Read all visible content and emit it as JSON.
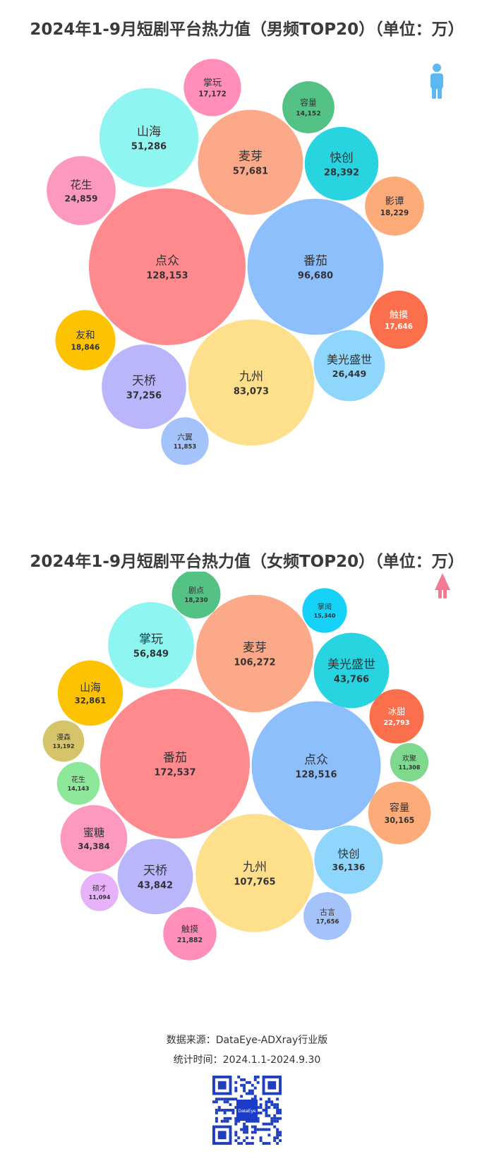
{
  "charts": [
    {
      "title": "2024年1-9月短剧平台热力值（男频TOP20）（单位：万）",
      "icon": "male-person-icon",
      "icon_color": "#5bb8f0"
    },
    {
      "title": "2024年1-9月短剧平台热力值（女频TOP20）（单位：万）",
      "icon": "female-person-icon",
      "icon_color": "#f27b93"
    }
  ],
  "chart_data": [
    {
      "type": "bubble",
      "title": "2024年1-9月短剧平台热力值（男频TOP20）（单位：万）",
      "items": [
        {
          "name": "点众",
          "value": 128153,
          "label": "128,153",
          "color": "#ff8a8e"
        },
        {
          "name": "番茄",
          "value": 96680,
          "label": "96,680",
          "color": "#8cbffb"
        },
        {
          "name": "九州",
          "value": 83073,
          "label": "83,073",
          "color": "#fedf8c"
        },
        {
          "name": "麦芽",
          "value": 57681,
          "label": "57,681",
          "color": "#fba988"
        },
        {
          "name": "山海",
          "value": 51286,
          "label": "51,286",
          "color": "#8ef5f0"
        },
        {
          "name": "天桥",
          "value": 37256,
          "label": "37,256",
          "color": "#bab6fb"
        },
        {
          "name": "快创",
          "value": 28392,
          "label": "28,392",
          "color": "#27d4e0"
        },
        {
          "name": "美光盛世",
          "value": 26449,
          "label": "26,449",
          "color": "#8fd6fc"
        },
        {
          "name": "花生",
          "value": 24859,
          "label": "24,859",
          "color": "#fd99bf"
        },
        {
          "name": "友和",
          "value": 18846,
          "label": "18,846",
          "color": "#fdc300"
        },
        {
          "name": "影谭",
          "value": 18229,
          "label": "18,229",
          "color": "#fdab79"
        },
        {
          "name": "触摸",
          "value": 17646,
          "label": "17,646",
          "color": "#fc6f4c"
        },
        {
          "name": "掌玩",
          "value": 17172,
          "label": "17,172",
          "color": "#ff8fba"
        },
        {
          "name": "容量",
          "value": 14152,
          "label": "14,152",
          "color": "#55c285"
        },
        {
          "name": "六翼",
          "value": 11853,
          "label": "11,853",
          "color": "#a5c3fb"
        }
      ]
    },
    {
      "type": "bubble",
      "title": "2024年1-9月短剧平台热力值（女频TOP20）（单位：万）",
      "items": [
        {
          "name": "番茄",
          "value": 172537,
          "label": "172,537",
          "color": "#ff8a8e"
        },
        {
          "name": "点众",
          "value": 128516,
          "label": "128,516",
          "color": "#8cbffb"
        },
        {
          "name": "九州",
          "value": 107765,
          "label": "107,765",
          "color": "#fedf8c"
        },
        {
          "name": "麦芽",
          "value": 106272,
          "label": "106,272",
          "color": "#fba988"
        },
        {
          "name": "掌玩",
          "value": 56849,
          "label": "56,849",
          "color": "#8ef5f0"
        },
        {
          "name": "天桥",
          "value": 43842,
          "label": "43,842",
          "color": "#bab6fb"
        },
        {
          "name": "美光盛世",
          "value": 43766,
          "label": "43,766",
          "color": "#27d4e0"
        },
        {
          "name": "快创",
          "value": 36136,
          "label": "36,136",
          "color": "#8fd6fc"
        },
        {
          "name": "蜜糖",
          "value": 34384,
          "label": "34,384",
          "color": "#fd99bf"
        },
        {
          "name": "山海",
          "value": 32861,
          "label": "32,861",
          "color": "#fdc300"
        },
        {
          "name": "容量",
          "value": 30165,
          "label": "30,165",
          "color": "#fdab79"
        },
        {
          "name": "冰甜",
          "value": 22793,
          "label": "22,793",
          "color": "#fc6f4c"
        },
        {
          "name": "触摸",
          "value": 21882,
          "label": "21,882",
          "color": "#ff8fba"
        },
        {
          "name": "剧点",
          "value": 18230,
          "label": "18,230",
          "color": "#55c285"
        },
        {
          "name": "古言",
          "value": 17656,
          "label": "17,656",
          "color": "#a5c3fb"
        },
        {
          "name": "掌阅",
          "value": 15340,
          "label": "15,340",
          "color": "#16d2f8"
        },
        {
          "name": "花生",
          "value": 14143,
          "label": "14,143",
          "color": "#8ee89a"
        },
        {
          "name": "漫森",
          "value": 13192,
          "label": "13,192",
          "color": "#d6c46a"
        },
        {
          "name": "欢聚",
          "value": 11308,
          "label": "11,308",
          "color": "#7ed88d"
        },
        {
          "name": "硕才",
          "value": 11094,
          "label": "11,094",
          "color": "#e8b2fa"
        }
      ]
    }
  ],
  "footer": {
    "source": "数据来源：DataEye-ADXray行业版",
    "period": "统计时间：2024.1.1-2024.9.30",
    "qr_logo_text": "DataEye"
  }
}
